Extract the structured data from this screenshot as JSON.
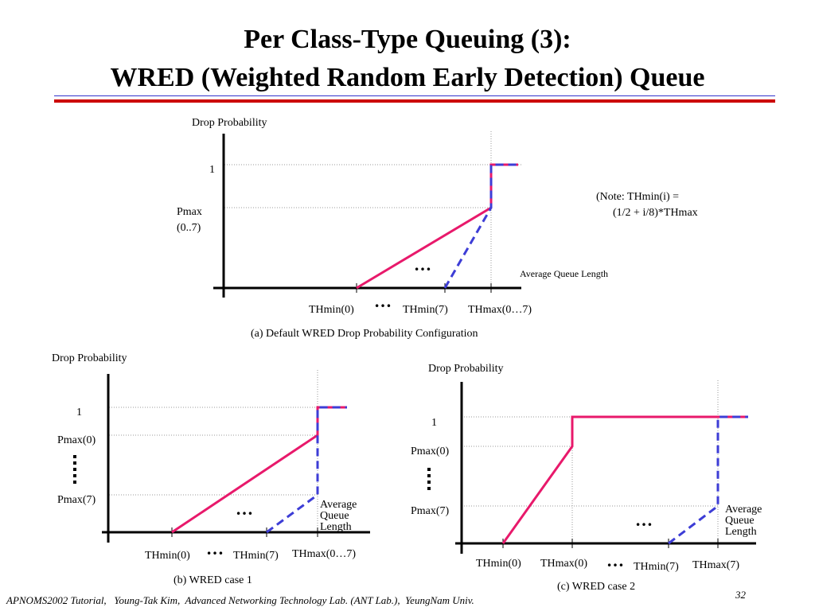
{
  "slide": {
    "title_line1": "Per Class-Type Queuing (3):",
    "title_line2": "WRED (Weighted Random Early Detection)  Queue",
    "footer": "APNOMS2002 Tutorial,   Young-Tak Kim,  Advanced Networking Technology Lab. (ANT Lab.),  YeungNam Univ.",
    "page_number": "32"
  },
  "colors": {
    "accent_red": "#cc0000",
    "rule_blue": "#3333cc",
    "line_pink": "#e8196b",
    "line_blue": "#3d3dd6"
  },
  "diagram_a": {
    "ylabel": "Drop Probability",
    "xlabel": "Average Queue Length",
    "y_one": "1",
    "y_pmax_1": "Pmax",
    "y_pmax_2": "(0..7)",
    "x_thmin0": "THmin(0)",
    "x_thmin7": "THmin(7)",
    "x_thmax": "THmax(0…7)",
    "dots": "…",
    "caption": "(a) Default WRED Drop Probability Configuration",
    "note_line1": "(Note: THmin(i) =",
    "note_line2": "(1/2 + i/8)*THmax"
  },
  "diagram_b": {
    "ylabel": "Drop Probability",
    "xlabel_1": "Average",
    "xlabel_2": "Queue",
    "xlabel_3": "Length",
    "y_one": "1",
    "y_pmax0": "Pmax(0)",
    "y_pmax7": "Pmax(7)",
    "x_thmin0": "THmin(0)",
    "x_thmin7": "THmin(7)",
    "x_thmax": "THmax(0…7)",
    "caption": "(b) WRED case 1"
  },
  "diagram_c": {
    "ylabel": "Drop Probability",
    "xlabel_1": "Average",
    "xlabel_2": "Queue",
    "xlabel_3": "Length",
    "y_one": "1",
    "y_pmax0": "Pmax(0)",
    "y_pmax7": "Pmax(7)",
    "x_thmin0": "THmin(0)",
    "x_thmax0": "THmax(0)",
    "x_thmin7": "THmin(7)",
    "x_thmax7": "THmax(7)",
    "caption": "(c) WRED case 2"
  }
}
